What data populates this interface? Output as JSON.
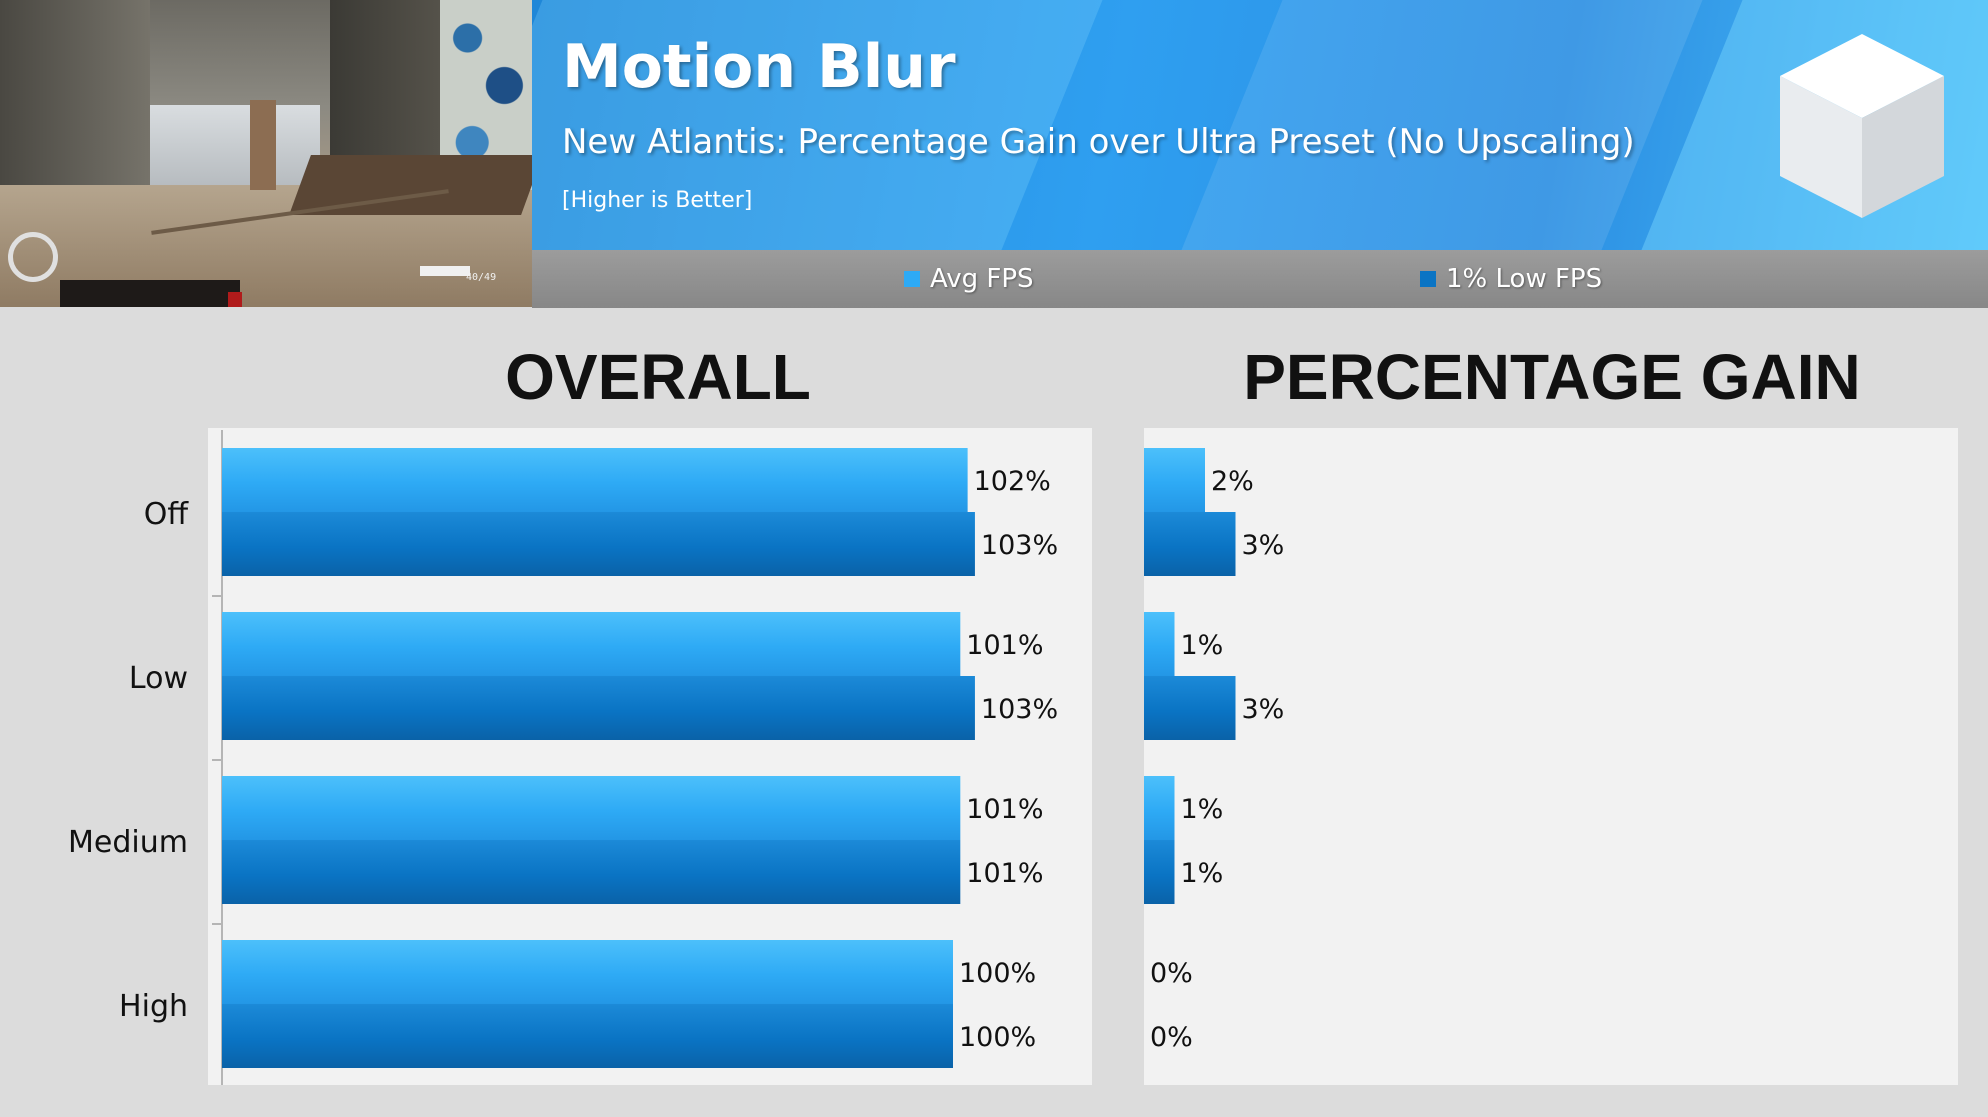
{
  "header": {
    "title": "Motion Blur",
    "subtitle": "New Atlantis: Percentage Gain over Ultra Preset (No Upscaling)",
    "note": "[Higher is Better]"
  },
  "thumbnail": {
    "hud_ammo": "40/49"
  },
  "legend": [
    {
      "label": "Avg FPS",
      "color": "#2eaaf5"
    },
    {
      "label": "1% Low FPS",
      "color": "#0a74c4"
    }
  ],
  "panels": {
    "overall_heading": "OVERALL",
    "gain_heading": "PERCENTAGE GAIN"
  },
  "chart_data": [
    {
      "type": "bar",
      "orientation": "horizontal",
      "title": "OVERALL",
      "categories": [
        "Off",
        "Low",
        "Medium",
        "High"
      ],
      "series": [
        {
          "name": "Avg FPS",
          "values": [
            102,
            101,
            101,
            100
          ],
          "labels": [
            "102%",
            "101%",
            "101%",
            "100%"
          ]
        },
        {
          "name": "1% Low FPS",
          "values": [
            103,
            103,
            101,
            100
          ],
          "labels": [
            "103%",
            "103%",
            "101%",
            "100%"
          ]
        }
      ],
      "unit": "%",
      "grid": false,
      "legend": "top"
    },
    {
      "type": "bar",
      "orientation": "horizontal",
      "title": "PERCENTAGE GAIN",
      "categories": [
        "Off",
        "Low",
        "Medium",
        "High"
      ],
      "series": [
        {
          "name": "Avg FPS",
          "values": [
            2,
            1,
            1,
            0
          ],
          "labels": [
            "2%",
            "1%",
            "1%",
            "0%"
          ]
        },
        {
          "name": "1% Low FPS",
          "values": [
            3,
            3,
            1,
            0
          ],
          "labels": [
            "3%",
            "3%",
            "1%",
            "0%"
          ]
        }
      ],
      "unit": "%",
      "grid": false,
      "legend": "top"
    }
  ],
  "colors": {
    "avg": "#2eaaf5",
    "low": "#0a74c4",
    "plot_bg": "#f2f2f2",
    "page_bg": "#dcdcdc"
  }
}
